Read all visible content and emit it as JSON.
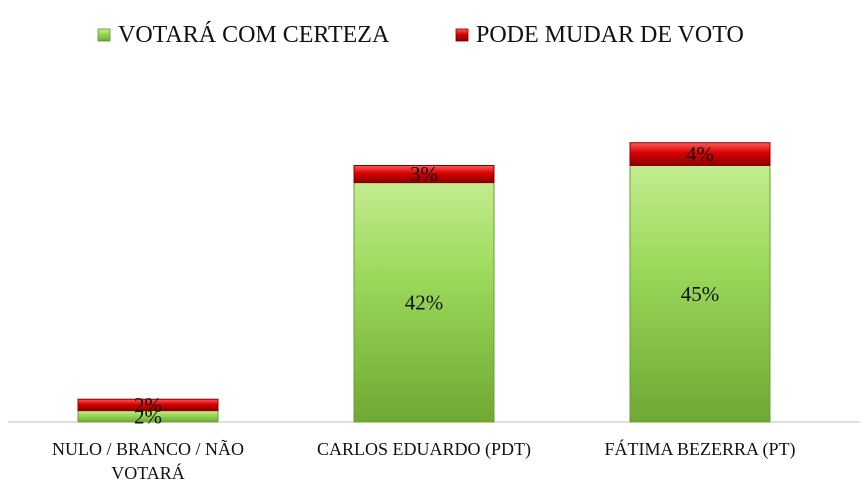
{
  "chart_data": {
    "type": "bar",
    "stacked": true,
    "categories": [
      "NULO / BRANCO / NÃO VOTARÁ",
      "CARLOS EDUARDO (PDT)",
      "FÁTIMA BEZERRA (PT)"
    ],
    "category_lines": [
      [
        "NULO / BRANCO / NÃO",
        "VOTARÁ"
      ],
      [
        "CARLOS EDUARDO (PDT)"
      ],
      [
        "FÁTIMA BEZERRA (PT)"
      ]
    ],
    "series": [
      {
        "name": "VOTARÁ COM CERTEZA",
        "color": "#92D050",
        "values": [
          2,
          42,
          45
        ],
        "labels": [
          "2%",
          "42%",
          "45%"
        ]
      },
      {
        "name": "PODE MUDAR DE VOTO",
        "color": "#E00000",
        "values": [
          2,
          3,
          4
        ],
        "labels": [
          "2%",
          "3%",
          "4%"
        ]
      }
    ],
    "ylim": [
      0,
      50
    ],
    "grid": false,
    "legend_position": "top"
  }
}
